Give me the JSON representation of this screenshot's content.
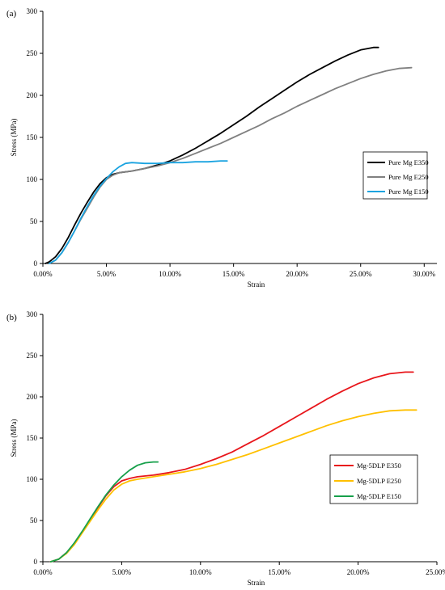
{
  "chart_data": [
    {
      "panel_label": "(a)",
      "type": "line",
      "xlabel": "Strain",
      "ylabel": "Stress (MPa)",
      "xlim": [
        0,
        0.31
      ],
      "ylim": [
        0,
        300
      ],
      "x_ticks": [
        0,
        0.05,
        0.1,
        0.15,
        0.2,
        0.25,
        0.3
      ],
      "x_tick_labels": [
        "0.00%",
        "5.00%",
        "10.00%",
        "15.00%",
        "20.00%",
        "25.00%",
        "30.00%"
      ],
      "y_ticks": [
        0,
        50,
        100,
        150,
        200,
        250,
        300
      ],
      "y_tick_labels": [
        "0",
        "50",
        "100",
        "150",
        "200",
        "250",
        "300"
      ],
      "grid": false,
      "legend_position": "right",
      "series": [
        {
          "name": "Pure Mg E350",
          "color": "#000000",
          "points": [
            [
              0.002,
              0
            ],
            [
              0.005,
              2
            ],
            [
              0.01,
              8
            ],
            [
              0.015,
              18
            ],
            [
              0.02,
              31
            ],
            [
              0.025,
              46
            ],
            [
              0.03,
              60
            ],
            [
              0.035,
              73
            ],
            [
              0.04,
              85
            ],
            [
              0.045,
              95
            ],
            [
              0.05,
              102
            ],
            [
              0.055,
              106
            ],
            [
              0.06,
              108
            ],
            [
              0.07,
              110
            ],
            [
              0.08,
              113
            ],
            [
              0.09,
              117
            ],
            [
              0.1,
              122
            ],
            [
              0.11,
              129
            ],
            [
              0.12,
              137
            ],
            [
              0.13,
              146
            ],
            [
              0.14,
              155
            ],
            [
              0.15,
              165
            ],
            [
              0.16,
              175
            ],
            [
              0.17,
              186
            ],
            [
              0.18,
              196
            ],
            [
              0.19,
              206
            ],
            [
              0.2,
              216
            ],
            [
              0.21,
              225
            ],
            [
              0.22,
              233
            ],
            [
              0.23,
              241
            ],
            [
              0.24,
              248
            ],
            [
              0.25,
              254
            ],
            [
              0.26,
              257
            ],
            [
              0.264,
              257
            ]
          ]
        },
        {
          "name": "Pure Mg E250",
          "color": "#808080",
          "points": [
            [
              0.005,
              0
            ],
            [
              0.01,
              4
            ],
            [
              0.015,
              13
            ],
            [
              0.02,
              25
            ],
            [
              0.025,
              39
            ],
            [
              0.03,
              53
            ],
            [
              0.035,
              66
            ],
            [
              0.04,
              79
            ],
            [
              0.045,
              91
            ],
            [
              0.05,
              100
            ],
            [
              0.055,
              105
            ],
            [
              0.06,
              108
            ],
            [
              0.07,
              110
            ],
            [
              0.08,
              113
            ],
            [
              0.09,
              116
            ],
            [
              0.1,
              120
            ],
            [
              0.11,
              125
            ],
            [
              0.12,
              131
            ],
            [
              0.13,
              137
            ],
            [
              0.14,
              143
            ],
            [
              0.15,
              150
            ],
            [
              0.16,
              157
            ],
            [
              0.17,
              164
            ],
            [
              0.18,
              172
            ],
            [
              0.19,
              179
            ],
            [
              0.2,
              187
            ],
            [
              0.21,
              194
            ],
            [
              0.22,
              201
            ],
            [
              0.23,
              208
            ],
            [
              0.24,
              214
            ],
            [
              0.25,
              220
            ],
            [
              0.26,
              225
            ],
            [
              0.27,
              229
            ],
            [
              0.28,
              232
            ],
            [
              0.29,
              233
            ]
          ]
        },
        {
          "name": "Pure Mg E150",
          "color": "#1aa3e0",
          "points": [
            [
              0.005,
              0
            ],
            [
              0.01,
              4
            ],
            [
              0.015,
              13
            ],
            [
              0.02,
              25
            ],
            [
              0.025,
              39
            ],
            [
              0.03,
              54
            ],
            [
              0.035,
              68
            ],
            [
              0.04,
              81
            ],
            [
              0.045,
              92
            ],
            [
              0.05,
              101
            ],
            [
              0.055,
              109
            ],
            [
              0.06,
              115
            ],
            [
              0.065,
              119
            ],
            [
              0.07,
              120
            ],
            [
              0.08,
              119
            ],
            [
              0.09,
              119
            ],
            [
              0.1,
              120
            ],
            [
              0.11,
              120
            ],
            [
              0.12,
              121
            ],
            [
              0.13,
              121
            ],
            [
              0.14,
              122
            ],
            [
              0.145,
              122
            ]
          ]
        }
      ]
    },
    {
      "panel_label": "(b)",
      "type": "line",
      "xlabel": "Strain",
      "ylabel": "Stress (MPa)",
      "xlim": [
        0,
        0.25
      ],
      "ylim": [
        0,
        300
      ],
      "x_ticks": [
        0,
        0.05,
        0.1,
        0.15,
        0.2,
        0.25
      ],
      "x_tick_labels": [
        "0.00%",
        "5.00%",
        "10.00%",
        "15.00%",
        "20.00%",
        "25.00%"
      ],
      "y_ticks": [
        0,
        50,
        100,
        150,
        200,
        250,
        300
      ],
      "y_tick_labels": [
        "0",
        "50",
        "100",
        "150",
        "200",
        "250",
        "300"
      ],
      "grid": false,
      "legend_position": "right",
      "series": [
        {
          "name": "Mg-5DLP E350",
          "color": "#e8161b",
          "points": [
            [
              0.005,
              0
            ],
            [
              0.01,
              3
            ],
            [
              0.015,
              11
            ],
            [
              0.02,
              22
            ],
            [
              0.025,
              36
            ],
            [
              0.03,
              51
            ],
            [
              0.035,
              66
            ],
            [
              0.04,
              80
            ],
            [
              0.045,
              91
            ],
            [
              0.05,
              98
            ],
            [
              0.055,
              101
            ],
            [
              0.06,
              103
            ],
            [
              0.07,
              105
            ],
            [
              0.08,
              108
            ],
            [
              0.09,
              112
            ],
            [
              0.1,
              118
            ],
            [
              0.11,
              125
            ],
            [
              0.12,
              133
            ],
            [
              0.13,
              143
            ],
            [
              0.14,
              153
            ],
            [
              0.15,
              164
            ],
            [
              0.16,
              175
            ],
            [
              0.17,
              186
            ],
            [
              0.18,
              197
            ],
            [
              0.19,
              207
            ],
            [
              0.2,
              216
            ],
            [
              0.21,
              223
            ],
            [
              0.22,
              228
            ],
            [
              0.23,
              230
            ],
            [
              0.235,
              230
            ]
          ]
        },
        {
          "name": "Mg-5DLP E250",
          "color": "#ffc000",
          "points": [
            [
              0.005,
              0
            ],
            [
              0.01,
              3
            ],
            [
              0.015,
              10
            ],
            [
              0.02,
              21
            ],
            [
              0.025,
              35
            ],
            [
              0.03,
              49
            ],
            [
              0.035,
              63
            ],
            [
              0.04,
              76
            ],
            [
              0.045,
              87
            ],
            [
              0.05,
              94
            ],
            [
              0.055,
              98
            ],
            [
              0.06,
              100
            ],
            [
              0.07,
              103
            ],
            [
              0.08,
              106
            ],
            [
              0.09,
              109
            ],
            [
              0.1,
              113
            ],
            [
              0.11,
              118
            ],
            [
              0.12,
              124
            ],
            [
              0.13,
              130
            ],
            [
              0.14,
              137
            ],
            [
              0.15,
              144
            ],
            [
              0.16,
              151
            ],
            [
              0.17,
              158
            ],
            [
              0.18,
              165
            ],
            [
              0.19,
              171
            ],
            [
              0.2,
              176
            ],
            [
              0.21,
              180
            ],
            [
              0.22,
              183
            ],
            [
              0.23,
              184
            ],
            [
              0.237,
              184
            ]
          ]
        },
        {
          "name": "Mg-5DLP E150",
          "color": "#17a04b",
          "points": [
            [
              0.005,
              0
            ],
            [
              0.01,
              3
            ],
            [
              0.015,
              11
            ],
            [
              0.02,
              23
            ],
            [
              0.025,
              37
            ],
            [
              0.03,
              52
            ],
            [
              0.035,
              67
            ],
            [
              0.04,
              81
            ],
            [
              0.045,
              93
            ],
            [
              0.05,
              103
            ],
            [
              0.055,
              111
            ],
            [
              0.06,
              117
            ],
            [
              0.065,
              120
            ],
            [
              0.07,
              121
            ],
            [
              0.073,
              121
            ]
          ]
        }
      ]
    }
  ]
}
